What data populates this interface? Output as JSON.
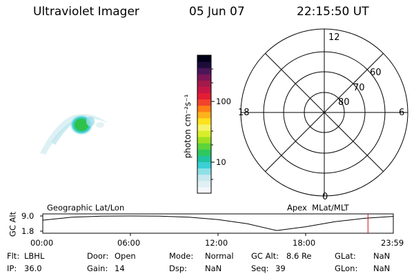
{
  "header": {
    "instrument": "Ultraviolet Imager",
    "date": "05 Jun 07",
    "time": "22:15:50 UT"
  },
  "colorbar": {
    "label": "photon cm⁻²s⁻¹",
    "ticks": [
      "100",
      "10"
    ],
    "scale": "log",
    "colors": [
      "#f4f8fa",
      "#dff0f4",
      "#c7e8ef",
      "#8ee0e6",
      "#3ccfd6",
      "#22c3a0",
      "#2ec860",
      "#5cd43a",
      "#9ee021",
      "#d8ee2a",
      "#f6f26a",
      "#ffe21e",
      "#ffb21b",
      "#ff7f16",
      "#f2442d",
      "#e21d35",
      "#c51645",
      "#a41a4a",
      "#7d1657",
      "#4a1659",
      "#1c0c3a",
      "#000018"
    ]
  },
  "polar": {
    "mlt_labels": [
      "12",
      "18",
      "6",
      "0"
    ],
    "lat_labels": [
      "60",
      "70",
      "80"
    ]
  },
  "orbit": {
    "left_title": "Geographic Lat/Lon",
    "right_title": "Apex  MLat/MLT",
    "y_axis_label": "GC Alt",
    "y_ticks": [
      "9.0",
      "1.8"
    ],
    "x_ticks": [
      "00:00",
      "06:00",
      "12:00",
      "18:00",
      "23:59"
    ],
    "current_time_marker_color": "#d01010"
  },
  "info": {
    "flt_label": "Flt:",
    "flt_value": "LBHL",
    "ip_label": "IP:",
    "ip_value": "36.0",
    "door_label": "Door:",
    "door_value": "Open",
    "gain_label": "Gain:",
    "gain_value": "14",
    "mode_label": "Mode:",
    "mode_value": "Normal",
    "dsp_label": "Dsp:",
    "dsp_value": "NaN",
    "gcalt_label": "GC Alt:",
    "gcalt_value": "8.6 Re",
    "seq_label": "Seq:",
    "seq_value": "39",
    "glat_label": "GLat:",
    "glat_value": "NaN",
    "glon_label": "GLon:",
    "glon_value": "NaN"
  },
  "chart_data": {
    "type": "line",
    "title": "",
    "xlabel": "",
    "ylabel": "GC Alt",
    "x_unit": "UT",
    "y_unit": "Re",
    "xlim": [
      "00:00",
      "23:59"
    ],
    "ylim": [
      1.8,
      9.0
    ],
    "x": [
      "00:00",
      "02:00",
      "04:00",
      "06:00",
      "08:00",
      "10:00",
      "12:00",
      "14:00",
      "16:00",
      "18:00",
      "20:00",
      "22:00",
      "23:59"
    ],
    "series": [
      {
        "values": [
          7.0,
          8.4,
          8.9,
          9.0,
          8.9,
          8.4,
          7.3,
          5.3,
          2.1,
          3.9,
          6.3,
          7.9,
          8.8
        ]
      }
    ],
    "current_time": "22:15"
  }
}
